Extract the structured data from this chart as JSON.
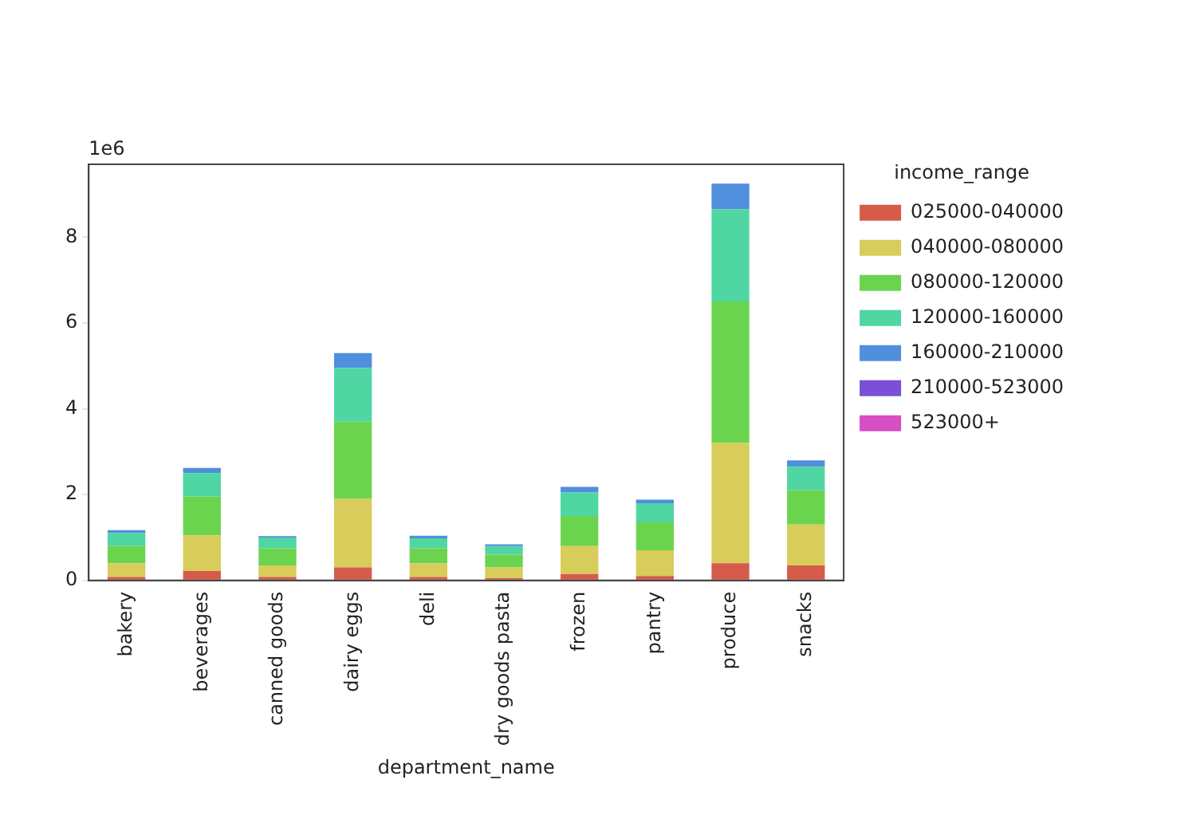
{
  "chart_data": {
    "type": "bar",
    "stacked": true,
    "xlabel": "department_name",
    "legend_title": "income_range",
    "legend": "right",
    "grid": false,
    "categories": [
      "bakery",
      "beverages",
      "canned goods",
      "dairy eggs",
      "deli",
      "dry goods pasta",
      "frozen",
      "pantry",
      "produce",
      "snacks"
    ],
    "ylim": [
      0,
      9.7
    ],
    "yticks": [
      0,
      2,
      4,
      6,
      8
    ],
    "annotations": [
      "1e6"
    ],
    "series": [
      {
        "name": "025000-040000",
        "color": "#d65b4a",
        "values": [
          0.08,
          0.22,
          0.08,
          0.3,
          0.08,
          0.05,
          0.15,
          0.1,
          0.4,
          0.35
        ]
      },
      {
        "name": "040000-080000",
        "color": "#d8cc5a",
        "values": [
          0.32,
          0.83,
          0.27,
          1.6,
          0.32,
          0.25,
          0.65,
          0.6,
          2.8,
          0.95
        ]
      },
      {
        "name": "080000-120000",
        "color": "#6bd44f",
        "values": [
          0.4,
          0.9,
          0.4,
          1.8,
          0.35,
          0.3,
          0.7,
          0.65,
          3.3,
          0.8
        ]
      },
      {
        "name": "120000-160000",
        "color": "#4fd6a2",
        "values": [
          0.3,
          0.55,
          0.25,
          1.25,
          0.23,
          0.2,
          0.55,
          0.45,
          2.15,
          0.55
        ]
      },
      {
        "name": "160000-210000",
        "color": "#4f8fdc",
        "values": [
          0.07,
          0.12,
          0.03,
          0.35,
          0.06,
          0.04,
          0.13,
          0.08,
          0.6,
          0.15
        ]
      },
      {
        "name": "210000-523000",
        "color": "#7b4fd6",
        "values": [
          0,
          0,
          0,
          0,
          0,
          0,
          0,
          0,
          0,
          0
        ]
      },
      {
        "name": "523000+",
        "color": "#d64fc4",
        "values": [
          0,
          0,
          0,
          0,
          0,
          0,
          0,
          0,
          0,
          0
        ]
      }
    ]
  }
}
